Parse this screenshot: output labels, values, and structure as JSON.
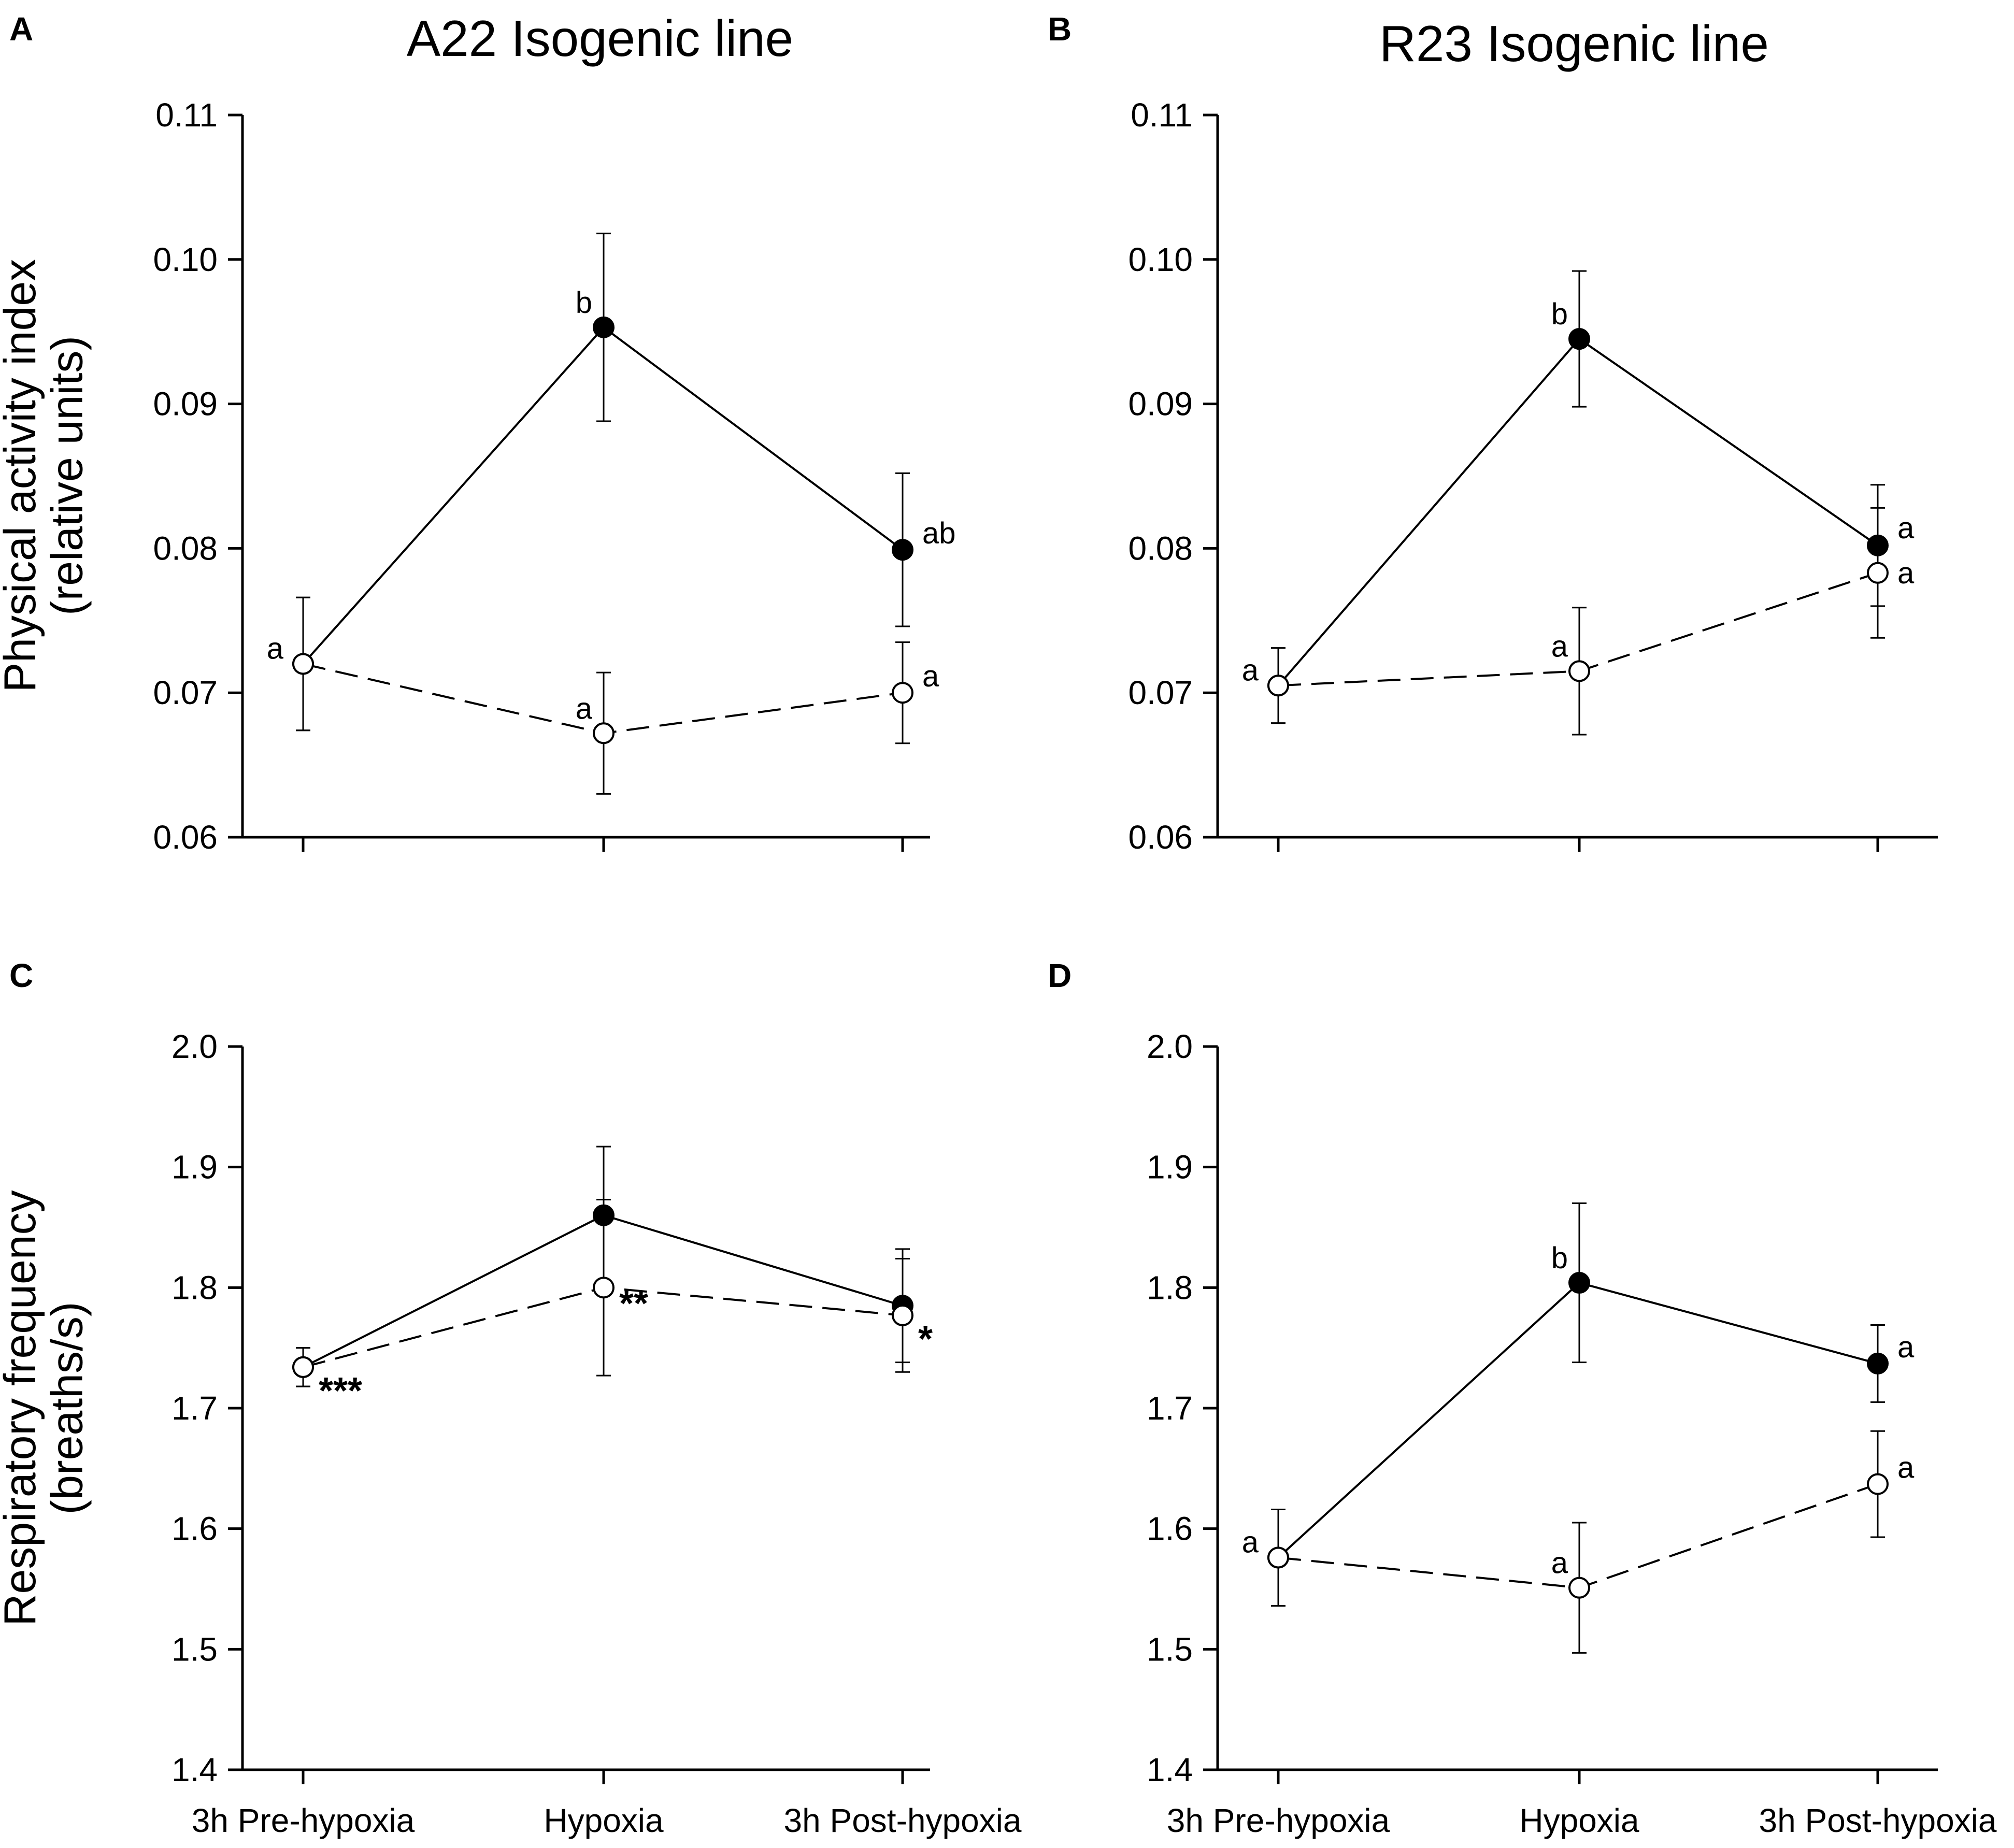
{
  "chart_data": [
    {
      "panel": "A",
      "type": "line",
      "title": "A22 Isogenic line",
      "ylabel_lines": [
        "Physical activity index",
        "(relative units)"
      ],
      "categories": [
        "3h Pre-hypoxia",
        "Hypoxia",
        "3h Post-hypoxia"
      ],
      "ylim": [
        0.06,
        0.11
      ],
      "yticks": [
        "0.06",
        "0.07",
        "0.08",
        "0.09",
        "0.10",
        "0.11"
      ],
      "series": [
        {
          "name": "filled",
          "style": "solid",
          "marker": "filled",
          "values": [
            0.072,
            0.0953,
            0.0799
          ],
          "err": [
            0.0046,
            0.0065,
            0.0053
          ],
          "labels": [
            "",
            "b",
            "ab"
          ]
        },
        {
          "name": "open",
          "style": "dashed",
          "marker": "open",
          "values": [
            0.072,
            0.0672,
            0.07
          ],
          "err": [
            0.0046,
            0.0042,
            0.0035
          ],
          "labels": [
            "a",
            "a",
            "a"
          ]
        }
      ]
    },
    {
      "panel": "B",
      "type": "line",
      "title": "R23 Isogenic line",
      "ylabel_lines": [],
      "categories": [
        "3h Pre-hypoxia",
        "Hypoxia",
        "3h Post-hypoxia"
      ],
      "ylim": [
        0.06,
        0.11
      ],
      "yticks": [
        "0.06",
        "0.07",
        "0.08",
        "0.09",
        "0.10",
        "0.11"
      ],
      "series": [
        {
          "name": "filled",
          "style": "solid",
          "marker": "filled",
          "values": [
            0.0705,
            0.0945,
            0.0802
          ],
          "err": [
            0.0026,
            0.0047,
            0.0042
          ],
          "labels": [
            "",
            "b",
            "a"
          ]
        },
        {
          "name": "open",
          "style": "dashed",
          "marker": "open",
          "values": [
            0.0705,
            0.0715,
            0.0783
          ],
          "err": [
            0.0026,
            0.0044,
            0.0045
          ],
          "labels": [
            "a",
            "a",
            "a"
          ]
        }
      ]
    },
    {
      "panel": "C",
      "type": "line",
      "title": "",
      "ylabel_lines": [
        "Respiratory frequency",
        "(breaths/s)"
      ],
      "categories": [
        "3h Pre-hypoxia",
        "Hypoxia",
        "3h Post-hypoxia"
      ],
      "ylim": [
        1.4,
        2.0
      ],
      "yticks": [
        "1.4",
        "1.5",
        "1.6",
        "1.7",
        "1.8",
        "1.9",
        "2.0"
      ],
      "series": [
        {
          "name": "filled",
          "style": "solid",
          "marker": "filled",
          "values": [
            1.734,
            1.86,
            1.785
          ],
          "err": [
            0.016,
            0.057,
            0.047
          ],
          "labels": [
            "",
            "",
            ""
          ]
        },
        {
          "name": "open",
          "style": "dashed",
          "marker": "open",
          "values": [
            1.734,
            1.8,
            1.777
          ],
          "err": [
            0.016,
            0.073,
            0.047
          ],
          "labels": [
            "***",
            "**",
            "*"
          ]
        }
      ]
    },
    {
      "panel": "D",
      "type": "line",
      "title": "",
      "ylabel_lines": [],
      "categories": [
        "3h Pre-hypoxia",
        "Hypoxia",
        "3h Post-hypoxia"
      ],
      "ylim": [
        1.4,
        2.0
      ],
      "yticks": [
        "1.4",
        "1.5",
        "1.6",
        "1.7",
        "1.8",
        "1.9",
        "2.0"
      ],
      "series": [
        {
          "name": "filled",
          "style": "solid",
          "marker": "filled",
          "values": [
            1.576,
            1.804,
            1.737
          ],
          "err": [
            0.04,
            0.066,
            0.032
          ],
          "labels": [
            "",
            "b",
            "a"
          ]
        },
        {
          "name": "open",
          "style": "dashed",
          "marker": "open",
          "values": [
            1.576,
            1.551,
            1.637
          ],
          "err": [
            0.04,
            0.054,
            0.044
          ],
          "labels": [
            "a",
            "a",
            "a"
          ]
        }
      ]
    }
  ]
}
